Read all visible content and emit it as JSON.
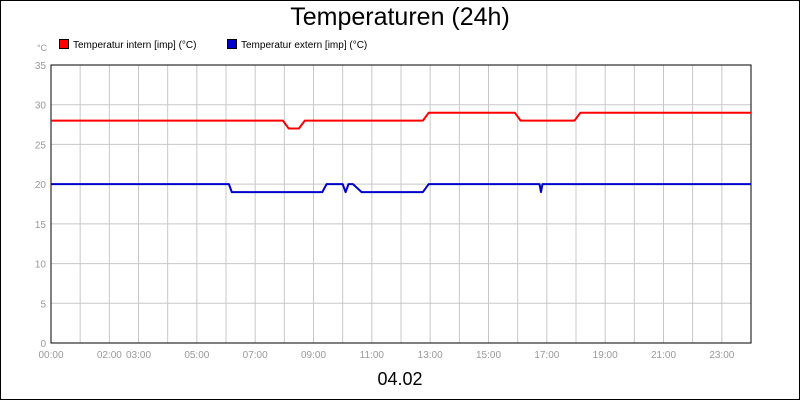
{
  "chart_data": {
    "type": "line",
    "title": "Temperaturen (24h)",
    "unit_label": "°C",
    "date_label": "04.02",
    "ylim": [
      0,
      35
    ],
    "yticks": [
      0,
      5,
      10,
      15,
      20,
      25,
      30,
      35
    ],
    "xlim": [
      0,
      24
    ],
    "xtick_labels": [
      {
        "label": "00:00",
        "hour": 0
      },
      {
        "label": "02:00",
        "hour": 2
      },
      {
        "label": "03:00",
        "hour": 3
      },
      {
        "label": "05:00",
        "hour": 5
      },
      {
        "label": "07:00",
        "hour": 7
      },
      {
        "label": "09:00",
        "hour": 9
      },
      {
        "label": "11:00",
        "hour": 11
      },
      {
        "label": "13:00",
        "hour": 13
      },
      {
        "label": "15:00",
        "hour": 15
      },
      {
        "label": "17:00",
        "hour": 17
      },
      {
        "label": "19:00",
        "hour": 19
      },
      {
        "label": "21:00",
        "hour": 21
      },
      {
        "label": "23:00",
        "hour": 23
      }
    ],
    "grid": true,
    "legend_position": "top-left",
    "series": [
      {
        "name": "Temperatur intern [imp] (°C)",
        "color": "#ff0000",
        "x": [
          0,
          7.95,
          8.15,
          8.5,
          8.7,
          12.75,
          12.95,
          15.9,
          16.1,
          17.95,
          18.15,
          24
        ],
        "y": [
          28,
          28,
          27,
          27,
          28,
          28,
          29,
          29,
          28,
          28,
          29,
          29
        ]
      },
      {
        "name": "Temperatur extern [imp] (°C)",
        "color": "#0000cc",
        "x": [
          0,
          6.1,
          6.2,
          9.3,
          9.45,
          10.0,
          10.1,
          10.2,
          10.35,
          10.5,
          10.65,
          12.75,
          12.95,
          16.75,
          16.8,
          16.85,
          24
        ],
        "y": [
          20,
          20,
          19,
          19,
          20,
          20,
          19,
          20,
          20,
          19.5,
          19,
          19,
          20,
          20,
          19,
          20,
          20
        ]
      }
    ]
  }
}
